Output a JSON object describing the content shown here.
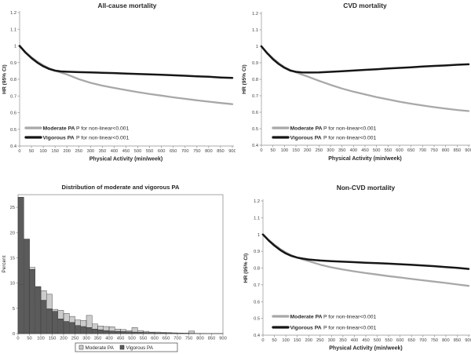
{
  "figure_name": "Physical activity and mortality figure",
  "colors": {
    "moderate_line": "#a8a8a8",
    "vigorous_line": "#161616",
    "hist_moderate_fill": "#cccccc",
    "hist_moderate_stroke": "#4a4a4a",
    "hist_vigorous_fill": "#5b5b5b",
    "hist_vigorous_stroke": "#2c2c2c",
    "axis": "#8f8f8f",
    "tick_text": "#3d3d3d",
    "label_text": "#262626"
  },
  "chart_data": [
    {
      "type": "line",
      "title": "All-cause mortality",
      "xlabel": "Physical Activity (min/week)",
      "ylabel": "HR (95% CI)",
      "xlim": [
        0,
        900
      ],
      "ylim": [
        0.4,
        1.2
      ],
      "xticks": [
        0,
        50,
        100,
        150,
        200,
        250,
        300,
        350,
        400,
        450,
        500,
        550,
        600,
        650,
        700,
        750,
        800,
        850,
        900
      ],
      "ytick_labels": [
        "0.4",
        "0.5",
        "0.6",
        "0.7",
        "0.8",
        "0.9",
        "1",
        "1.1",
        "1.2"
      ],
      "grid": false,
      "legend_position": "inside lower-left",
      "legend": [
        {
          "label": "Moderate PA",
          "note": "P for non-linear<0.001",
          "color": "#a8a8a8"
        },
        {
          "label": "Vigorous PA",
          "note": "P for non-linear<0.001",
          "color": "#161616"
        }
      ],
      "x": [
        0,
        25,
        50,
        75,
        100,
        125,
        150,
        175,
        200,
        250,
        300,
        350,
        400,
        450,
        500,
        550,
        600,
        650,
        700,
        750,
        800,
        850,
        900
      ],
      "series": [
        {
          "name": "Moderate PA",
          "color": "#a8a8a8",
          "width": 2.3,
          "values": [
            1.0,
            0.963,
            0.932,
            0.906,
            0.884,
            0.866,
            0.852,
            0.84,
            0.829,
            0.801,
            0.779,
            0.762,
            0.748,
            0.735,
            0.723,
            0.712,
            0.702,
            0.692,
            0.683,
            0.674,
            0.666,
            0.658,
            0.651
          ]
        },
        {
          "name": "Vigorous PA",
          "color": "#161616",
          "width": 2.5,
          "values": [
            1.0,
            0.96,
            0.927,
            0.9,
            0.878,
            0.862,
            0.852,
            0.847,
            0.845,
            0.843,
            0.841,
            0.839,
            0.837,
            0.834,
            0.832,
            0.829,
            0.827,
            0.824,
            0.821,
            0.818,
            0.815,
            0.811,
            0.808
          ]
        }
      ]
    },
    {
      "type": "line",
      "title": "CVD mortality",
      "xlabel": "Physical Activity (min/week)",
      "ylabel": "HR (95% CI)",
      "xlim": [
        0,
        900
      ],
      "ylim": [
        0.4,
        1.2
      ],
      "xticks": [
        0,
        50,
        100,
        150,
        200,
        250,
        300,
        350,
        400,
        450,
        500,
        550,
        600,
        650,
        700,
        750,
        800,
        850,
        900
      ],
      "ytick_labels": [
        "0.4",
        "0.5",
        "0.6",
        "0.7",
        "0.8",
        "0.9",
        "1",
        "1.1",
        "1.2"
      ],
      "grid": false,
      "legend_position": "inside lower-left",
      "legend": [
        {
          "label": "Moderate PA",
          "note": "P for non-linear<0.001",
          "color": "#a8a8a8"
        },
        {
          "label": "Vigorous PA",
          "note": "P for non-linear<0.001",
          "color": "#161616"
        }
      ],
      "x": [
        0,
        25,
        50,
        75,
        100,
        125,
        150,
        175,
        200,
        250,
        300,
        350,
        400,
        450,
        500,
        550,
        600,
        650,
        700,
        750,
        800,
        850,
        900
      ],
      "series": [
        {
          "name": "Moderate PA",
          "color": "#a8a8a8",
          "width": 2.3,
          "values": [
            1.0,
            0.961,
            0.927,
            0.898,
            0.874,
            0.856,
            0.842,
            0.829,
            0.817,
            0.791,
            0.766,
            0.744,
            0.725,
            0.708,
            0.692,
            0.678,
            0.664,
            0.652,
            0.641,
            0.631,
            0.622,
            0.614,
            0.607
          ]
        },
        {
          "name": "Vigorous PA",
          "color": "#161616",
          "width": 2.5,
          "values": [
            1.0,
            0.958,
            0.922,
            0.893,
            0.87,
            0.853,
            0.845,
            0.842,
            0.841,
            0.842,
            0.845,
            0.849,
            0.853,
            0.857,
            0.861,
            0.865,
            0.869,
            0.873,
            0.877,
            0.881,
            0.884,
            0.888,
            0.891
          ]
        }
      ]
    },
    {
      "type": "histogram",
      "title": "Distribution of moderate and vigorous PA",
      "xlabel": "",
      "ylabel": "Percent",
      "xlim": [
        0,
        900
      ],
      "ylim": [
        0,
        27.5
      ],
      "bin_width": 25,
      "bin_start": 0,
      "xticks": [
        0,
        50,
        100,
        150,
        200,
        250,
        300,
        350,
        400,
        450,
        500,
        550,
        600,
        650,
        700,
        750,
        800,
        850,
        900
      ],
      "yticks": [
        0,
        5,
        10,
        15,
        20,
        25
      ],
      "grid": false,
      "legend_position": "below plot, boxed",
      "legend": [
        {
          "label": "Moderate PA",
          "fill": "#cccccc",
          "stroke": "#4a4a4a"
        },
        {
          "label": "Vigorous PA",
          "fill": "#5b5b5b",
          "stroke": "#2c2c2c"
        }
      ],
      "series": [
        {
          "name": "Moderate PA",
          "fill": "#cccccc",
          "stroke": "#4a4a4a",
          "values": [
            9.7,
            18.7,
            13.1,
            9.3,
            8.5,
            7.8,
            4.8,
            4.6,
            4.0,
            3.4,
            2.7,
            2.6,
            3.6,
            1.9,
            1.5,
            1.4,
            1.35,
            0.9,
            0.8,
            0.6,
            1.2,
            0.6,
            0.45,
            0.3,
            0.3,
            0.25,
            0.2,
            0.15,
            0.12,
            0.1,
            0.5,
            0.05,
            0.05,
            0.04,
            0.03,
            0.03
          ]
        },
        {
          "name": "Vigorous PA",
          "fill": "#5b5b5b",
          "stroke": "#2c2c2c",
          "values": [
            27.0,
            18.7,
            12.7,
            9.3,
            6.6,
            4.9,
            4.4,
            2.9,
            2.4,
            2.2,
            1.6,
            1.4,
            1.2,
            0.9,
            0.75,
            0.6,
            0.5,
            0.45,
            0.4,
            0.35,
            0.3,
            0.25,
            0.2,
            0.18,
            0.15,
            0.13,
            0.1,
            0.1,
            0.08,
            0.07,
            0.05,
            0.04,
            0.03,
            0.03,
            0.02,
            0.02
          ]
        }
      ]
    },
    {
      "type": "line",
      "title": "Non-CVD mortality",
      "xlabel": "Physical Activity (min/week)",
      "ylabel": "HR (95% CI)",
      "xlim": [
        0,
        900
      ],
      "ylim": [
        0.4,
        1.2
      ],
      "xticks": [
        0,
        50,
        100,
        150,
        200,
        250,
        300,
        350,
        400,
        450,
        500,
        550,
        600,
        650,
        700,
        750,
        800,
        850,
        900
      ],
      "ytick_labels": [
        "0.4",
        "0.5",
        "0.6",
        "0.7",
        "0.8",
        "0.9",
        "1",
        "1.1",
        "1.2"
      ],
      "grid": false,
      "legend_position": "inside lower-left",
      "legend": [
        {
          "label": "Moderate PA",
          "note": "P for non-linear<0.001",
          "color": "#a8a8a8"
        },
        {
          "label": "Vigorous PA",
          "note": "P for non-linear<0.001",
          "color": "#161616"
        }
      ],
      "x": [
        0,
        25,
        50,
        75,
        100,
        125,
        150,
        175,
        200,
        250,
        300,
        350,
        400,
        450,
        500,
        550,
        600,
        650,
        700,
        750,
        800,
        850,
        900
      ],
      "series": [
        {
          "name": "Moderate PA",
          "color": "#a8a8a8",
          "width": 2.3,
          "values": [
            1.0,
            0.967,
            0.939,
            0.914,
            0.893,
            0.876,
            0.862,
            0.851,
            0.841,
            0.82,
            0.804,
            0.791,
            0.78,
            0.77,
            0.761,
            0.752,
            0.744,
            0.735,
            0.727,
            0.719,
            0.711,
            0.702,
            0.694
          ]
        },
        {
          "name": "Vigorous PA",
          "color": "#161616",
          "width": 2.5,
          "values": [
            1.0,
            0.964,
            0.934,
            0.908,
            0.887,
            0.872,
            0.862,
            0.856,
            0.851,
            0.845,
            0.841,
            0.838,
            0.835,
            0.832,
            0.829,
            0.826,
            0.823,
            0.819,
            0.815,
            0.811,
            0.806,
            0.801,
            0.795
          ]
        }
      ]
    }
  ]
}
